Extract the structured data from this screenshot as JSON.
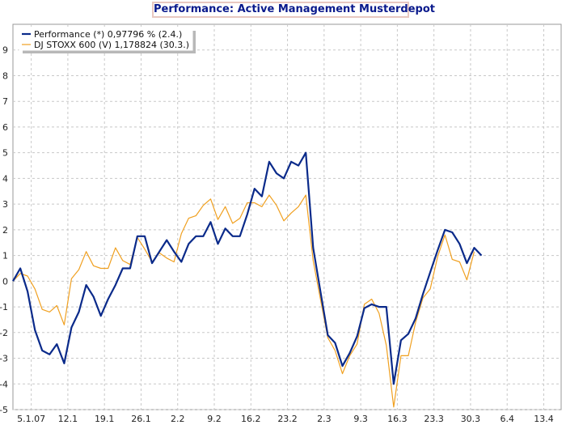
{
  "chart_data": {
    "type": "line",
    "title": "Performance: Active Management Musterdepot",
    "ylim": [
      -5,
      10
    ],
    "xlim": [
      0,
      27
    ],
    "grid": true,
    "legend_position": "top-left",
    "y_ticks": [
      "-5",
      "-4",
      "-3",
      "-2",
      "-1",
      "0",
      "1",
      "2",
      "3",
      "4",
      "5",
      "6",
      "7",
      "8",
      "9"
    ],
    "y_tick_values": [
      -5,
      -4,
      -3,
      -2,
      -1,
      0,
      1,
      2,
      3,
      4,
      5,
      6,
      7,
      8,
      9
    ],
    "x_ticks": [
      "5.1.07",
      "12.1",
      "19.1",
      "26.1",
      "2.2",
      "9.2",
      "16.2",
      "23.2",
      "2.3",
      "9.3",
      "16.3",
      "23.3",
      "30.3",
      "6.4",
      "13.4"
    ],
    "x_tick_values": [
      1,
      3,
      5,
      7,
      9,
      11,
      13,
      15,
      17,
      19,
      21,
      23,
      25,
      27,
      29
    ],
    "series": [
      {
        "name": "Performance (*) 0,97796 % (2.4.)",
        "color": "#0a2a8a",
        "width": 2.2,
        "x": [
          0,
          0.4,
          0.8,
          1.2,
          1.6,
          2.0,
          2.4,
          2.8,
          3.2,
          3.6,
          4.0,
          4.4,
          4.8,
          5.2,
          5.6,
          6.0,
          6.4,
          6.8,
          7.2,
          7.6,
          8.0,
          8.4,
          8.8,
          9.2,
          9.6,
          10.0,
          10.4,
          10.8,
          11.2,
          11.6,
          12.0,
          12.4,
          12.8,
          13.2,
          13.6,
          14.0,
          14.4,
          14.8,
          15.2,
          15.6,
          16.0,
          16.4,
          16.8,
          17.2,
          17.6,
          18.0,
          18.4,
          18.8,
          19.2,
          19.6,
          20.0,
          20.4,
          20.8,
          21.2,
          21.6,
          22.0,
          22.4,
          22.8,
          23.2,
          23.6,
          24.0,
          24.4,
          24.8,
          25.2,
          25.6
        ],
        "y": [
          0,
          0.5,
          -0.4,
          -1.9,
          -2.7,
          -2.85,
          -2.45,
          -3.2,
          -1.8,
          -1.2,
          -0.15,
          -0.6,
          -1.35,
          -0.7,
          -0.15,
          0.5,
          0.5,
          1.75,
          1.75,
          0.7,
          1.15,
          1.6,
          1.15,
          0.75,
          1.45,
          1.75,
          1.75,
          2.3,
          1.45,
          2.05,
          1.75,
          1.75,
          2.6,
          3.6,
          3.3,
          4.65,
          4.2,
          4.0,
          4.65,
          4.5,
          5.0,
          1.3,
          -0.4,
          -2.1,
          -2.4,
          -3.3,
          -2.8,
          -2.15,
          -1.05,
          -0.9,
          -1.0,
          -1.0,
          -4.0,
          -2.3,
          -2.05,
          -1.45,
          -0.5,
          0.35,
          1.2,
          2.0,
          1.9,
          1.45,
          0.7,
          1.3,
          1.0
        ]
      },
      {
        "name": "DJ STOXX 600 (V) 1,178824 (30.3.)",
        "color": "#f0a020",
        "width": 1.2,
        "x": [
          0,
          0.4,
          0.8,
          1.2,
          1.6,
          2.0,
          2.4,
          2.8,
          3.2,
          3.6,
          4.0,
          4.4,
          4.8,
          5.2,
          5.6,
          6.0,
          6.4,
          6.8,
          7.2,
          7.6,
          8.0,
          8.4,
          8.8,
          9.2,
          9.6,
          10.0,
          10.4,
          10.8,
          11.2,
          11.6,
          12.0,
          12.4,
          12.8,
          13.2,
          13.6,
          14.0,
          14.4,
          14.8,
          15.2,
          15.6,
          16.0,
          16.4,
          16.8,
          17.2,
          17.6,
          18.0,
          18.4,
          18.8,
          19.2,
          19.6,
          20.0,
          20.4,
          20.8,
          21.2,
          21.6,
          22.0,
          22.4,
          22.8,
          23.2,
          23.6,
          24.0,
          24.4,
          24.8,
          25.2
        ],
        "y": [
          0,
          0.3,
          0.2,
          -0.3,
          -1.1,
          -1.2,
          -0.95,
          -1.7,
          0.1,
          0.45,
          1.15,
          0.6,
          0.5,
          0.5,
          1.3,
          0.8,
          0.65,
          1.7,
          1.25,
          0.75,
          1.1,
          0.9,
          0.75,
          1.85,
          2.45,
          2.55,
          2.95,
          3.2,
          2.4,
          2.9,
          2.25,
          2.45,
          3.05,
          3.05,
          2.9,
          3.35,
          2.95,
          2.35,
          2.65,
          2.9,
          3.35,
          0.8,
          -0.7,
          -2.2,
          -2.7,
          -3.6,
          -2.9,
          -2.45,
          -0.9,
          -0.7,
          -1.25,
          -2.5,
          -4.9,
          -2.9,
          -2.9,
          -1.6,
          -0.65,
          -0.3,
          0.95,
          1.8,
          0.85,
          0.75,
          0.05,
          1.15
        ]
      }
    ]
  }
}
